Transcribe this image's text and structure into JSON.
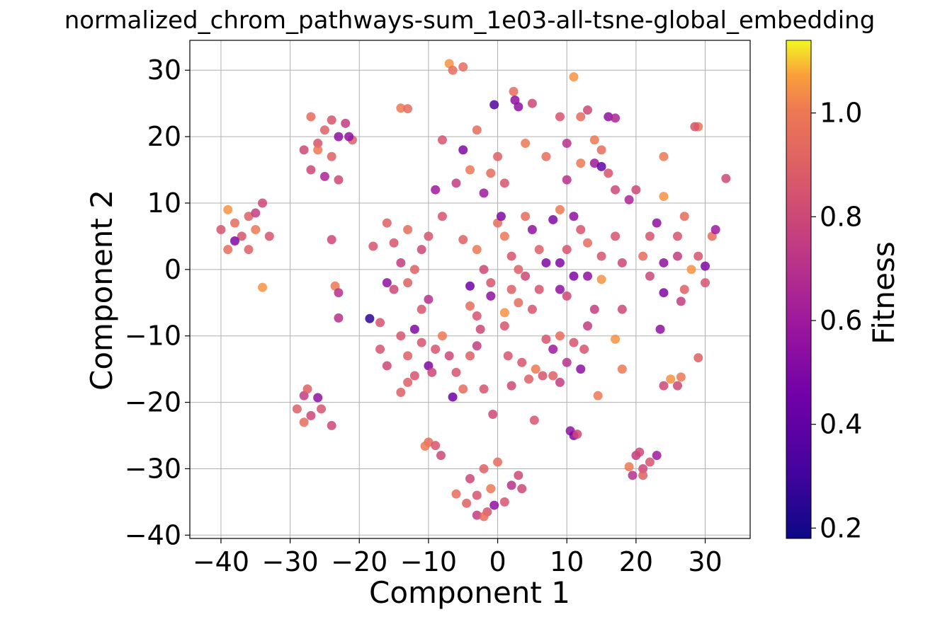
{
  "chart_data": {
    "type": "scatter",
    "title": "normalized_chrom_pathways-sum_1e03-all-tsne-global_embedding",
    "xlabel": "Component 1",
    "ylabel": "Component 2",
    "xlim": [
      -44.5,
      36.5
    ],
    "ylim": [
      -40.5,
      34.5
    ],
    "xticks": [
      -40,
      -30,
      -20,
      -10,
      0,
      10,
      20,
      30
    ],
    "yticks": [
      -40,
      -30,
      -20,
      -10,
      0,
      10,
      20,
      30
    ],
    "xtick_labels": [
      "−40",
      "−30",
      "−20",
      "−10",
      "0",
      "10",
      "20",
      "30"
    ],
    "ytick_labels": [
      "−40",
      "−30",
      "−20",
      "−10",
      "0",
      "10",
      "20",
      "30"
    ],
    "grid": true,
    "colormap": "plasma",
    "colorbar": {
      "label": "Fitness",
      "range": [
        0.18,
        1.14
      ],
      "ticks": [
        0.2,
        0.4,
        0.6,
        0.8,
        1.0
      ],
      "tick_labels": [
        "0.2",
        "0.4",
        "0.6",
        "0.8",
        "1.0"
      ]
    },
    "points": [
      {
        "x": -39,
        "y": 9,
        "c": 1.05
      },
      {
        "x": -38,
        "y": 7,
        "c": 0.95
      },
      {
        "x": -37,
        "y": 5,
        "c": 0.85
      },
      {
        "x": -36,
        "y": 8,
        "c": 0.9
      },
      {
        "x": -35,
        "y": 6,
        "c": 1.0
      },
      {
        "x": -38,
        "y": 4.3,
        "c": 0.5
      },
      {
        "x": -36,
        "y": 3,
        "c": 0.9
      },
      {
        "x": -40,
        "y": 6,
        "c": 0.85
      },
      {
        "x": -34,
        "y": 10,
        "c": 0.8
      },
      {
        "x": -33,
        "y": 5,
        "c": 0.85
      },
      {
        "x": -39,
        "y": 3,
        "c": 0.95
      },
      {
        "x": -35,
        "y": 8.5,
        "c": 0.75
      },
      {
        "x": -34,
        "y": -2.7,
        "c": 1.05
      },
      {
        "x": -27,
        "y": 23,
        "c": 0.95
      },
      {
        "x": -25,
        "y": 21,
        "c": 0.9
      },
      {
        "x": -26,
        "y": 19,
        "c": 0.85
      },
      {
        "x": -24,
        "y": 17,
        "c": 0.9
      },
      {
        "x": -23,
        "y": 20,
        "c": 0.55
      },
      {
        "x": -22,
        "y": 22,
        "c": 0.75
      },
      {
        "x": -27,
        "y": 15,
        "c": 0.8
      },
      {
        "x": -25,
        "y": 14,
        "c": 0.65
      },
      {
        "x": -23,
        "y": 13.5,
        "c": 0.8
      },
      {
        "x": -21,
        "y": 19.5,
        "c": 0.9
      },
      {
        "x": -26,
        "y": 18,
        "c": 1.0
      },
      {
        "x": -24,
        "y": 22.5,
        "c": 0.85
      },
      {
        "x": -21.5,
        "y": 20,
        "c": 0.55
      },
      {
        "x": -28,
        "y": 18,
        "c": 0.8
      },
      {
        "x": -24,
        "y": 4.5,
        "c": 0.8
      },
      {
        "x": -23.5,
        "y": -2.5,
        "c": 1.0
      },
      {
        "x": -23,
        "y": -3.5,
        "c": 0.7
      },
      {
        "x": -23,
        "y": -7.3,
        "c": 0.7
      },
      {
        "x": -18.5,
        "y": -7.4,
        "c": 0.25
      },
      {
        "x": -17,
        "y": -8,
        "c": 0.85
      },
      {
        "x": -28,
        "y": -19,
        "c": 0.75
      },
      {
        "x": -29,
        "y": -21,
        "c": 0.9
      },
      {
        "x": -27,
        "y": -22,
        "c": 0.8
      },
      {
        "x": -26,
        "y": -19.3,
        "c": 0.55
      },
      {
        "x": -28,
        "y": -23,
        "c": 0.95
      },
      {
        "x": -25.5,
        "y": -21,
        "c": 0.85
      },
      {
        "x": -27.5,
        "y": -18,
        "c": 0.9
      },
      {
        "x": -24,
        "y": -23.5,
        "c": 0.8
      },
      {
        "x": -14,
        "y": 24.3,
        "c": 1.0
      },
      {
        "x": -13,
        "y": 24.2,
        "c": 0.95
      },
      {
        "x": -7,
        "y": 31,
        "c": 1.05
      },
      {
        "x": -6.5,
        "y": 30,
        "c": 0.95
      },
      {
        "x": -5,
        "y": 30.5,
        "c": 0.95
      },
      {
        "x": -8,
        "y": 19.5,
        "c": 0.85
      },
      {
        "x": -5,
        "y": 18,
        "c": 0.5
      },
      {
        "x": -3,
        "y": 21,
        "c": 0.95
      },
      {
        "x": -6,
        "y": 13,
        "c": 0.75
      },
      {
        "x": -4,
        "y": 15,
        "c": 1.0
      },
      {
        "x": -2,
        "y": 11.5,
        "c": 0.6
      },
      {
        "x": 0,
        "y": 17,
        "c": 0.9
      },
      {
        "x": 1,
        "y": 13,
        "c": 0.85
      },
      {
        "x": -1,
        "y": 14.5,
        "c": 0.95
      },
      {
        "x": -0.5,
        "y": 24.8,
        "c": 0.35
      },
      {
        "x": 2.3,
        "y": 26.8,
        "c": 0.95
      },
      {
        "x": 2.5,
        "y": 25.5,
        "c": 0.55
      },
      {
        "x": 3,
        "y": 24.5,
        "c": 0.55
      },
      {
        "x": 5,
        "y": 25,
        "c": 0.8
      },
      {
        "x": 4,
        "y": 19,
        "c": 1.0
      },
      {
        "x": 7,
        "y": 17,
        "c": 0.95
      },
      {
        "x": 9,
        "y": 23,
        "c": 0.85
      },
      {
        "x": 11,
        "y": 29,
        "c": 1.05
      },
      {
        "x": 12,
        "y": 23,
        "c": 0.95
      },
      {
        "x": 10,
        "y": 19,
        "c": 0.7
      },
      {
        "x": 13,
        "y": 24,
        "c": 0.8
      },
      {
        "x": 14,
        "y": 19.5,
        "c": 1.0
      },
      {
        "x": 15,
        "y": 18,
        "c": 0.95
      },
      {
        "x": 16,
        "y": 23,
        "c": 0.55
      },
      {
        "x": 17,
        "y": 22.8,
        "c": 0.65
      },
      {
        "x": 14,
        "y": 16,
        "c": 0.6
      },
      {
        "x": 15,
        "y": 15.5,
        "c": 0.4
      },
      {
        "x": 16,
        "y": 14.5,
        "c": 0.85
      },
      {
        "x": 10,
        "y": 13.5,
        "c": 0.7
      },
      {
        "x": 12,
        "y": 16,
        "c": 1.0
      },
      {
        "x": 17,
        "y": 12,
        "c": 0.8
      },
      {
        "x": 19,
        "y": 10.5,
        "c": 0.65
      },
      {
        "x": 20,
        "y": 12,
        "c": 0.8
      },
      {
        "x": 24,
        "y": 17,
        "c": 1.0
      },
      {
        "x": 24,
        "y": 11,
        "c": 1.05
      },
      {
        "x": 29,
        "y": 21.5,
        "c": 1.0
      },
      {
        "x": 28.5,
        "y": 21.5,
        "c": 0.85
      },
      {
        "x": 33,
        "y": 13.7,
        "c": 0.8
      },
      {
        "x": -18,
        "y": 3.5,
        "c": 0.85
      },
      {
        "x": -16,
        "y": 7,
        "c": 0.9
      },
      {
        "x": -15,
        "y": 4,
        "c": 0.85
      },
      {
        "x": -13,
        "y": 6,
        "c": 0.95
      },
      {
        "x": -11,
        "y": 3,
        "c": 0.8
      },
      {
        "x": -14,
        "y": 1,
        "c": 0.75
      },
      {
        "x": -12,
        "y": 0,
        "c": 0.9
      },
      {
        "x": -10,
        "y": 5,
        "c": 0.85
      },
      {
        "x": -9,
        "y": 12,
        "c": 0.6
      },
      {
        "x": -8,
        "y": 8,
        "c": 0.85
      },
      {
        "x": -16,
        "y": -2,
        "c": 0.55
      },
      {
        "x": -15,
        "y": -3,
        "c": 0.8
      },
      {
        "x": -13,
        "y": -2,
        "c": 0.9
      },
      {
        "x": -11,
        "y": -6,
        "c": 0.85
      },
      {
        "x": -10,
        "y": -4.5,
        "c": 0.7
      },
      {
        "x": -5,
        "y": 4.5,
        "c": 0.9
      },
      {
        "x": -3,
        "y": 3,
        "c": 1.0
      },
      {
        "x": -2,
        "y": 0,
        "c": 0.8
      },
      {
        "x": -4,
        "y": -2.5,
        "c": 0.45
      },
      {
        "x": -1,
        "y": -2,
        "c": 0.85
      },
      {
        "x": 0,
        "y": 7,
        "c": 0.95
      },
      {
        "x": 0.5,
        "y": 8,
        "c": 0.5
      },
      {
        "x": 1,
        "y": 5,
        "c": 1.0
      },
      {
        "x": 2,
        "y": 2,
        "c": 0.85
      },
      {
        "x": 3,
        "y": 0,
        "c": 0.9
      },
      {
        "x": 4,
        "y": 8,
        "c": 0.95
      },
      {
        "x": 5,
        "y": 6,
        "c": 0.55
      },
      {
        "x": 6,
        "y": 3,
        "c": 0.9
      },
      {
        "x": 7,
        "y": 1,
        "c": 0.5
      },
      {
        "x": 8,
        "y": 7.5,
        "c": 0.5
      },
      {
        "x": 9,
        "y": 9,
        "c": 1.0
      },
      {
        "x": 9,
        "y": 1,
        "c": 0.5
      },
      {
        "x": 10,
        "y": 3,
        "c": 0.85
      },
      {
        "x": 11,
        "y": 8,
        "c": 0.55
      },
      {
        "x": 12,
        "y": 6,
        "c": 0.85
      },
      {
        "x": 13,
        "y": 4,
        "c": 0.95
      },
      {
        "x": 11,
        "y": -1,
        "c": 0.5
      },
      {
        "x": 13,
        "y": -1,
        "c": 0.55
      },
      {
        "x": 15,
        "y": 2,
        "c": 0.85
      },
      {
        "x": 15,
        "y": -1.5,
        "c": 1.05
      },
      {
        "x": 17,
        "y": 5,
        "c": 0.85
      },
      {
        "x": 18,
        "y": 1,
        "c": 0.8
      },
      {
        "x": 9,
        "y": -3,
        "c": 0.55
      },
      {
        "x": 10,
        "y": -4,
        "c": 0.8
      },
      {
        "x": 14,
        "y": -6,
        "c": 0.75
      },
      {
        "x": 22,
        "y": 5,
        "c": 0.85
      },
      {
        "x": 23,
        "y": 7,
        "c": 0.55
      },
      {
        "x": 21,
        "y": 2,
        "c": 0.95
      },
      {
        "x": 22,
        "y": -1,
        "c": 0.8
      },
      {
        "x": 24,
        "y": 1,
        "c": 0.55
      },
      {
        "x": 24,
        "y": -3.5,
        "c": 0.5
      },
      {
        "x": 26,
        "y": 5,
        "c": 0.85
      },
      {
        "x": 27,
        "y": 8,
        "c": 0.95
      },
      {
        "x": 26,
        "y": 2,
        "c": 0.75
      },
      {
        "x": 27,
        "y": -3,
        "c": 0.9
      },
      {
        "x": 26.5,
        "y": -4.8,
        "c": 0.75
      },
      {
        "x": 28,
        "y": 0,
        "c": 1.05
      },
      {
        "x": 29,
        "y": 2,
        "c": 0.85
      },
      {
        "x": 30,
        "y": 0.5,
        "c": 0.5
      },
      {
        "x": 31,
        "y": 5,
        "c": 0.95
      },
      {
        "x": 31.5,
        "y": 6,
        "c": 0.6
      },
      {
        "x": 30,
        "y": -2,
        "c": 0.85
      },
      {
        "x": 23.5,
        "y": -9,
        "c": 0.55
      },
      {
        "x": -3,
        "y": -7,
        "c": 0.85
      },
      {
        "x": -4,
        "y": -5.5,
        "c": 0.95
      },
      {
        "x": -2.5,
        "y": -9,
        "c": 0.8
      },
      {
        "x": -1,
        "y": -4,
        "c": 0.55
      },
      {
        "x": 1,
        "y": -6.5,
        "c": 1.05
      },
      {
        "x": 1,
        "y": -8.5,
        "c": 0.85
      },
      {
        "x": 2,
        "y": -3,
        "c": 0.9
      },
      {
        "x": 3,
        "y": -5,
        "c": 0.95
      },
      {
        "x": 4,
        "y": -1,
        "c": 0.8
      },
      {
        "x": 5,
        "y": -6,
        "c": 0.85
      },
      {
        "x": 6,
        "y": -3,
        "c": 0.85
      },
      {
        "x": 7,
        "y": -10.5,
        "c": 0.85
      },
      {
        "x": 8,
        "y": -12,
        "c": 0.6
      },
      {
        "x": 9,
        "y": -10,
        "c": 0.95
      },
      {
        "x": 10,
        "y": -14,
        "c": 0.7
      },
      {
        "x": 11,
        "y": -11,
        "c": 0.85
      },
      {
        "x": 12,
        "y": -15,
        "c": 0.55
      },
      {
        "x": 13,
        "y": -8.5,
        "c": 0.75
      },
      {
        "x": 12.5,
        "y": -12,
        "c": 0.85
      },
      {
        "x": 17,
        "y": -10.5,
        "c": 1.05
      },
      {
        "x": 18,
        "y": -15,
        "c": 1.0
      },
      {
        "x": 14.5,
        "y": -19,
        "c": 1.0
      },
      {
        "x": 18,
        "y": -6,
        "c": 0.8
      },
      {
        "x": -17,
        "y": -12,
        "c": 0.85
      },
      {
        "x": -16,
        "y": -14.5,
        "c": 0.8
      },
      {
        "x": -14,
        "y": -10,
        "c": 0.85
      },
      {
        "x": -13,
        "y": -13,
        "c": 0.9
      },
      {
        "x": -12,
        "y": -9,
        "c": 0.5
      },
      {
        "x": -11,
        "y": -11,
        "c": 0.85
      },
      {
        "x": -10,
        "y": -14.5,
        "c": 0.5
      },
      {
        "x": -9,
        "y": -12,
        "c": 0.85
      },
      {
        "x": -8,
        "y": -10,
        "c": 1.0
      },
      {
        "x": -13,
        "y": -17,
        "c": 0.9
      },
      {
        "x": -12,
        "y": -16,
        "c": 0.85
      },
      {
        "x": -9.5,
        "y": -15.5,
        "c": 0.8
      },
      {
        "x": -14,
        "y": -18.5,
        "c": 0.9
      },
      {
        "x": -7,
        "y": -13,
        "c": 0.8
      },
      {
        "x": -6,
        "y": -15.5,
        "c": 0.85
      },
      {
        "x": -5,
        "y": -18,
        "c": 0.95
      },
      {
        "x": -6.5,
        "y": -19.2,
        "c": 0.45
      },
      {
        "x": -4,
        "y": -13,
        "c": 0.9
      },
      {
        "x": -3,
        "y": -11.5,
        "c": 0.75
      },
      {
        "x": -2,
        "y": -18,
        "c": 0.85
      },
      {
        "x": 1.5,
        "y": -13,
        "c": 0.85
      },
      {
        "x": 2,
        "y": -17.5,
        "c": 0.8
      },
      {
        "x": 3.5,
        "y": -14,
        "c": 0.85
      },
      {
        "x": 4.5,
        "y": -16.5,
        "c": 0.9
      },
      {
        "x": 5.5,
        "y": -15,
        "c": 1.0
      },
      {
        "x": 6.5,
        "y": -16,
        "c": 0.85
      },
      {
        "x": 5.3,
        "y": -22.7,
        "c": 0.85
      },
      {
        "x": 8,
        "y": -16,
        "c": 0.9
      },
      {
        "x": 9,
        "y": -17,
        "c": 0.75
      },
      {
        "x": -0.7,
        "y": -21.8,
        "c": 0.8
      },
      {
        "x": 10.5,
        "y": -24.3,
        "c": 0.55
      },
      {
        "x": 11,
        "y": -25,
        "c": 0.5
      },
      {
        "x": 11.5,
        "y": -24.8,
        "c": 0.8
      },
      {
        "x": -10,
        "y": -26,
        "c": 0.95
      },
      {
        "x": -9,
        "y": -26.5,
        "c": 0.85
      },
      {
        "x": -8.2,
        "y": -28,
        "c": 0.8
      },
      {
        "x": -10.5,
        "y": -26.6,
        "c": 1.0
      },
      {
        "x": -6,
        "y": -33.8,
        "c": 0.95
      },
      {
        "x": -4,
        "y": -31.5,
        "c": 0.8
      },
      {
        "x": -3,
        "y": -34,
        "c": 0.85
      },
      {
        "x": -2,
        "y": -30,
        "c": 0.9
      },
      {
        "x": -1,
        "y": -33,
        "c": 1.0
      },
      {
        "x": 0,
        "y": -29,
        "c": 0.95
      },
      {
        "x": 1,
        "y": -35,
        "c": 0.85
      },
      {
        "x": -1.5,
        "y": -36.5,
        "c": 0.85
      },
      {
        "x": -3,
        "y": -37,
        "c": 0.75
      },
      {
        "x": -0.5,
        "y": -35.5,
        "c": 0.55
      },
      {
        "x": 2,
        "y": -32.5,
        "c": 0.7
      },
      {
        "x": 3,
        "y": -31,
        "c": 0.8
      },
      {
        "x": 3.5,
        "y": -33,
        "c": 0.8
      },
      {
        "x": -4.5,
        "y": -35.2,
        "c": 0.9
      },
      {
        "x": -2,
        "y": -37.2,
        "c": 0.95
      },
      {
        "x": 19,
        "y": -29.7,
        "c": 1.0
      },
      {
        "x": 20,
        "y": -28,
        "c": 0.75
      },
      {
        "x": 21,
        "y": -30,
        "c": 0.8
      },
      {
        "x": 22,
        "y": -29,
        "c": 0.85
      },
      {
        "x": 19.5,
        "y": -31,
        "c": 0.7
      },
      {
        "x": 21,
        "y": -31,
        "c": 0.9
      },
      {
        "x": 23,
        "y": -28,
        "c": 0.6
      },
      {
        "x": 20.5,
        "y": -27.5,
        "c": 0.8
      },
      {
        "x": 24,
        "y": -17.5,
        "c": 0.8
      },
      {
        "x": 25,
        "y": -16.5,
        "c": 1.05
      },
      {
        "x": 26,
        "y": -17.5,
        "c": 0.8
      },
      {
        "x": 26.5,
        "y": -16.2,
        "c": 1.0
      },
      {
        "x": 29,
        "y": -13.3,
        "c": 0.9
      }
    ]
  }
}
